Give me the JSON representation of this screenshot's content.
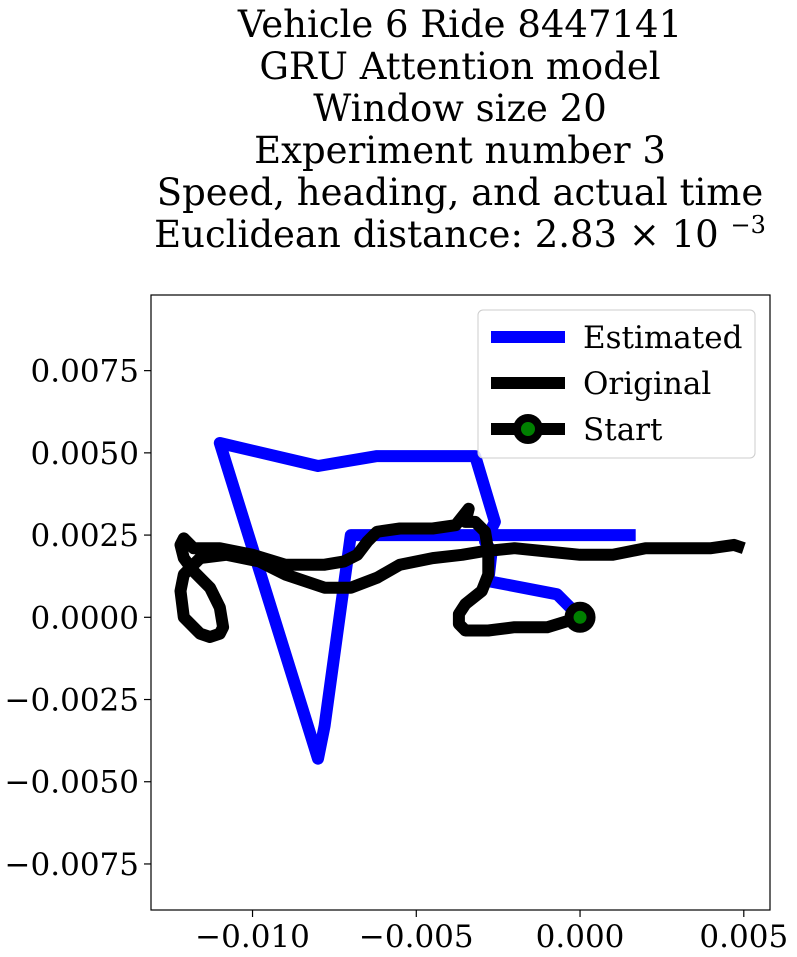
{
  "chart_data": {
    "type": "line",
    "title_lines": [
      "Vehicle 6 Ride 8447141",
      "GRU Attention model",
      "Window size 20",
      "Experiment number 3",
      "Speed, heading, and actual time"
    ],
    "title_distance": {
      "prefix": "Euclidean distance: ",
      "mantissa": "2.83",
      "times": "×",
      "base": "10",
      "exponent": "−3"
    },
    "xlim": [
      -0.0131,
      0.0058
    ],
    "ylim": [
      -0.0089,
      0.0098
    ],
    "x_ticks": [
      -0.01,
      -0.005,
      0.0,
      0.005
    ],
    "x_tick_labels": [
      "−0.010",
      "−0.005",
      "0.000",
      "0.005"
    ],
    "y_ticks": [
      0.0075,
      0.005,
      0.0025,
      0.0,
      -0.0025,
      -0.005,
      -0.0075
    ],
    "y_tick_labels": [
      "0.0075",
      "0.0050",
      "0.0025",
      "0.0000",
      "−0.0025",
      "−0.0050",
      "−0.0075"
    ],
    "legend_position": "upper right",
    "series": [
      {
        "name": "Estimated",
        "color": "#0000ff",
        "x": [
          0.0,
          -0.0007,
          -0.0028,
          -0.0027,
          -0.0029,
          -0.0026,
          -0.0032,
          -0.0062,
          -0.008,
          -0.011,
          -0.008,
          -0.0078,
          -0.007,
          -0.005,
          -0.003,
          -0.001,
          0.0017
        ],
        "y": [
          0.0,
          0.0007,
          0.0011,
          0.002,
          0.0023,
          0.0029,
          0.0049,
          0.0049,
          0.0046,
          0.0053,
          -0.0043,
          -0.0033,
          0.0025,
          0.0025,
          0.0025,
          0.0025,
          0.0025
        ]
      },
      {
        "name": "Original",
        "color": "#000000",
        "x": [
          0.0,
          -0.001,
          -0.002,
          -0.0028,
          -0.0035,
          -0.0037,
          -0.0037,
          -0.0035,
          -0.003,
          -0.0028,
          -0.0028,
          -0.0029,
          -0.0032,
          -0.0035,
          -0.0034,
          -0.0038,
          -0.0045,
          -0.0055,
          -0.0062,
          -0.0065,
          -0.0068,
          -0.0072,
          -0.0078,
          -0.009,
          -0.01,
          -0.011,
          -0.0118,
          -0.0121,
          -0.0122,
          -0.0121,
          -0.0118,
          -0.0113,
          -0.011,
          -0.0109,
          -0.011,
          -0.0113,
          -0.0116,
          -0.0121,
          -0.0122,
          -0.0121,
          -0.0116,
          -0.0108,
          -0.0098,
          -0.009,
          -0.0078,
          -0.007,
          -0.0062,
          -0.0055,
          -0.0045,
          -0.0036,
          -0.003,
          -0.002,
          -0.001,
          0.0,
          0.001,
          0.0015,
          0.002,
          0.003,
          0.004,
          0.0047,
          0.005
        ],
        "y": [
          0.0,
          -0.0003,
          -0.0003,
          -0.0004,
          -0.0004,
          -0.0002,
          0.0001,
          0.0004,
          0.0008,
          0.0013,
          0.002,
          0.0026,
          0.0029,
          0.0029,
          0.0033,
          0.0028,
          0.0027,
          0.0027,
          0.0026,
          0.0023,
          0.0019,
          0.0017,
          0.0016,
          0.0016,
          0.0019,
          0.0021,
          0.0021,
          0.0024,
          0.0022,
          0.0018,
          0.0014,
          0.0009,
          0.0003,
          -0.0003,
          -0.0005,
          -0.0006,
          -0.0005,
          0.0,
          0.0008,
          0.0013,
          0.0018,
          0.0019,
          0.0017,
          0.0013,
          0.0009,
          0.0009,
          0.0012,
          0.0016,
          0.0018,
          0.0019,
          0.002,
          0.0021,
          0.002,
          0.0019,
          0.0019,
          0.002,
          0.0021,
          0.0021,
          0.0021,
          0.0022,
          0.0021
        ]
      }
    ],
    "start_marker": {
      "name": "Start",
      "x": 0.0,
      "y": 0.0,
      "fill": "#008000",
      "edge": "#000000"
    }
  }
}
